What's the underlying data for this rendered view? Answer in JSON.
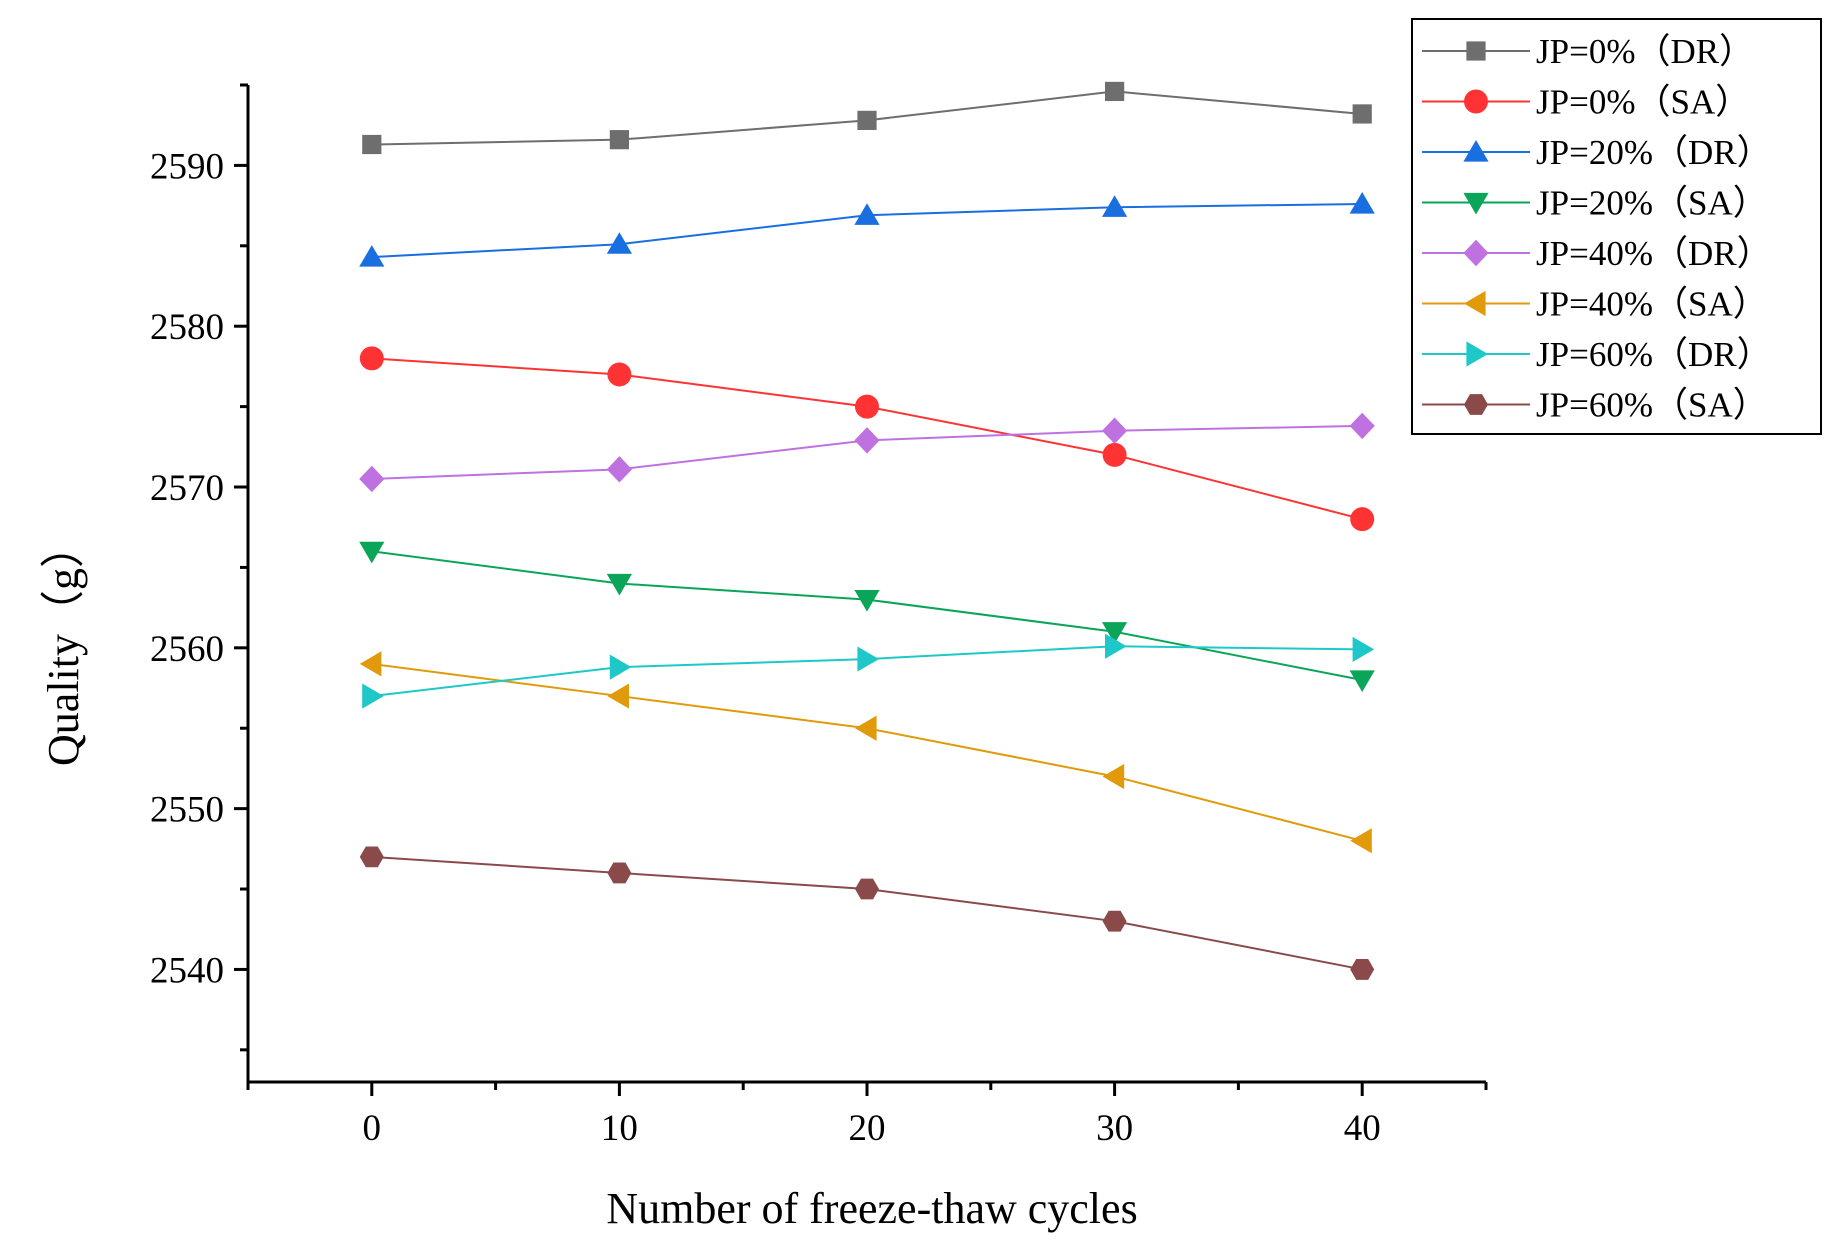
{
  "chart_data": {
    "type": "line",
    "title": "",
    "xlabel": "Number of freeze-thaw cycles",
    "ylabel": "Quality（g）",
    "xlim": [
      -5,
      45
    ],
    "ylim": [
      2533,
      2595
    ],
    "x_ticks": [
      0,
      10,
      20,
      30,
      40
    ],
    "y_ticks": [
      2540,
      2550,
      2560,
      2570,
      2580,
      2590
    ],
    "grid": false,
    "legend_position": "top-right",
    "x": [
      0,
      10,
      20,
      30,
      40
    ],
    "series": [
      {
        "name": "JP=0%（DR）",
        "marker": "square",
        "color": "#6e6e6e",
        "values": [
          2591.3,
          2591.6,
          2592.8,
          2594.6,
          2593.2
        ]
      },
      {
        "name": "JP=0%（SA）",
        "marker": "circle",
        "color": "#ff3333",
        "values": [
          2578,
          2577,
          2575,
          2572,
          2568
        ]
      },
      {
        "name": "JP=20%（DR）",
        "marker": "triangle-up",
        "color": "#1a6fe0",
        "values": [
          2584.3,
          2585.1,
          2586.9,
          2587.4,
          2587.6
        ]
      },
      {
        "name": "JP=20%（SA）",
        "marker": "triangle-down",
        "color": "#0aa558",
        "values": [
          2566,
          2564,
          2563,
          2561,
          2558
        ]
      },
      {
        "name": "JP=40%（DR）",
        "marker": "diamond",
        "color": "#c071e0",
        "values": [
          2570.5,
          2571.1,
          2572.9,
          2573.5,
          2573.8
        ]
      },
      {
        "name": "JP=40%（SA）",
        "marker": "triangle-left",
        "color": "#e09a0a",
        "values": [
          2559,
          2557,
          2555,
          2552,
          2548
        ]
      },
      {
        "name": "JP=60%（DR）",
        "marker": "triangle-right",
        "color": "#1ec8c8",
        "values": [
          2557,
          2558.8,
          2559.3,
          2560.1,
          2559.9
        ]
      },
      {
        "name": "JP=60%（SA）",
        "marker": "hexagon",
        "color": "#8b4a4a",
        "values": [
          2547,
          2546,
          2545,
          2543,
          2540
        ]
      }
    ]
  }
}
